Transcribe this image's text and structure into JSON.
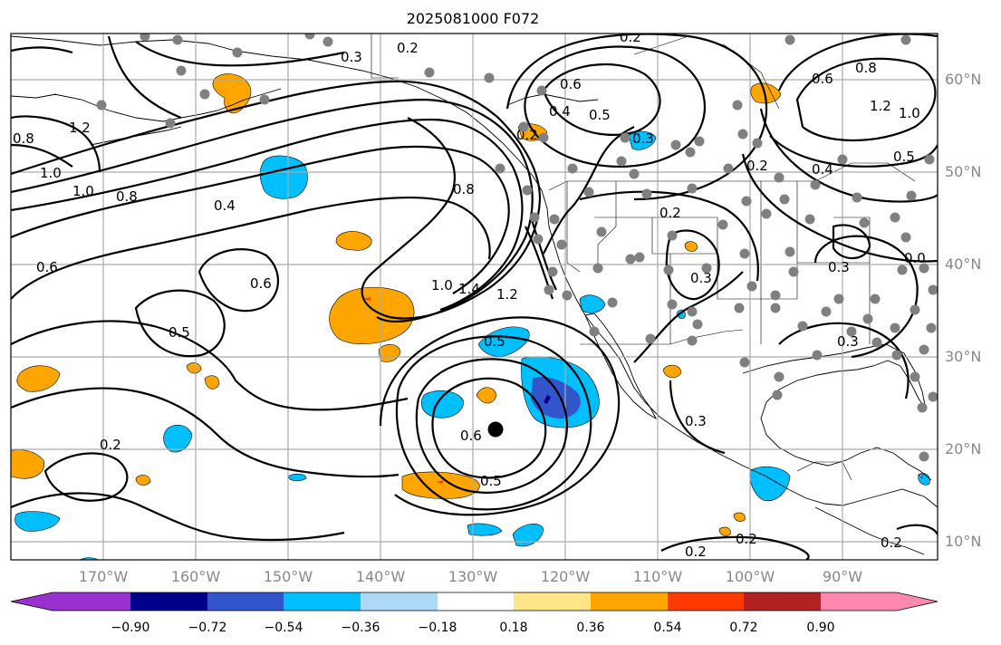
{
  "title": "2025081000 F072",
  "lat_labels": [
    "60°N",
    "50°N",
    "40°N",
    "30°N",
    "20°N",
    "10°N"
  ],
  "lon_labels": [
    "170°W",
    "160°W",
    "150°W",
    "140°W",
    "130°W",
    "120°W",
    "110°W",
    "100°W",
    "90°W"
  ],
  "colorbar": {
    "ticks": [
      "−0.90",
      "−0.72",
      "−0.54",
      "−0.36",
      "−0.18",
      "0.18",
      "0.36",
      "0.54",
      "0.72",
      "0.90"
    ],
    "colors": {
      "under": "#9b30d0",
      "b1": "#00008b",
      "b2": "#3355cc",
      "b3": "#00bfff",
      "b4": "#add8f7",
      "b5": "#ffffff",
      "b6": "#ffe58a",
      "b7": "#ffa500",
      "b8": "#ff3a00",
      "b9": "#b22222",
      "over": "#ff88b0"
    }
  },
  "contour_labels": [
    "0.2",
    "0.3",
    "0.2",
    "0.6",
    "0.4",
    "0.5",
    "0.3",
    "0.2",
    "0.6",
    "0.8",
    "1.2",
    "1.0",
    "0.5",
    "0.2",
    "0.4",
    "1.2",
    "0.8",
    "1.0",
    "1.0",
    "0.8",
    "0.4",
    "0.8",
    "0.6",
    "0.6",
    "0.5",
    "1.0",
    "1.4",
    "1.2",
    "0.5",
    "0.2",
    "0.3",
    "0.3",
    "0.2",
    "0.3",
    "0.6",
    "0.5",
    "0.3",
    "0.2",
    "0.2",
    "0.2",
    "0.0"
  ],
  "storm_marker": "storm-center-dot"
}
